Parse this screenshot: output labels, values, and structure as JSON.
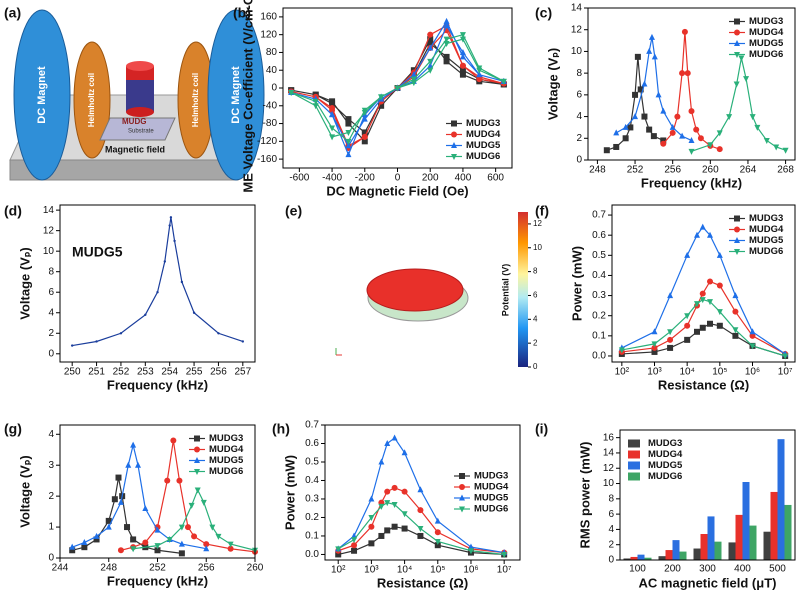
{
  "figure": {
    "panel_a": {
      "panel": "(a)",
      "magnet_label": "DC Magnet",
      "coil_label": "Helmholtz coil",
      "sample_label": "MUDG",
      "substrate_label": "Substrate",
      "field_label": "Magnetic field"
    },
    "panel_e": {
      "panel": "(e)",
      "colorbar_label": "Potential (V)",
      "range": [
        0,
        13
      ],
      "ticks": [
        0,
        2,
        4,
        6,
        8,
        10,
        12
      ]
    }
  },
  "chart_data": [
    {
      "type": "line",
      "panel": "(b)",
      "xlabel": "DC Magnetic Field (Oe)",
      "ylabel": "ME Voltage Co-efficient (V/cm-Oe)",
      "xlim": [
        -700,
        700
      ],
      "xticks": [
        -600,
        -400,
        -200,
        0,
        200,
        400,
        600
      ],
      "ylim": [
        -180,
        180
      ],
      "yticks": [
        -160,
        -120,
        -80,
        -40,
        0,
        40,
        80,
        120,
        160
      ],
      "legend": "lower right",
      "series": [
        {
          "name": "MUDG3",
          "color": "#333333",
          "marker": "square",
          "x": [
            -650,
            -500,
            -400,
            -300,
            -200,
            -100,
            0,
            100,
            200,
            300,
            400,
            500,
            650,
            650,
            500,
            400,
            300,
            200,
            100,
            0,
            -100,
            -200,
            -300,
            -400,
            -500,
            -650
          ],
          "values": [
            -5,
            -15,
            -30,
            -80,
            -120,
            -40,
            0,
            40,
            110,
            60,
            30,
            15,
            8,
            8,
            20,
            40,
            70,
            100,
            30,
            0,
            -30,
            -100,
            -70,
            -35,
            -15,
            -5
          ]
        },
        {
          "name": "MUDG4",
          "color": "#e8322a",
          "marker": "circle",
          "x": [
            -650,
            -500,
            -400,
            -300,
            -200,
            -100,
            0,
            100,
            200,
            300,
            400,
            500,
            650,
            650,
            500,
            400,
            300,
            200,
            100,
            0,
            -100,
            -200,
            -300,
            -400,
            -500,
            -650
          ],
          "values": [
            -8,
            -20,
            -45,
            -130,
            -110,
            -30,
            0,
            35,
            120,
            140,
            50,
            20,
            10,
            10,
            25,
            50,
            130,
            90,
            25,
            0,
            -30,
            -110,
            -135,
            -50,
            -20,
            -8
          ]
        },
        {
          "name": "MUDG5",
          "color": "#1e6fe8",
          "marker": "triangle",
          "x": [
            -650,
            -500,
            -400,
            -300,
            -200,
            -100,
            0,
            100,
            200,
            300,
            400,
            500,
            650,
            650,
            500,
            400,
            300,
            200,
            100,
            0,
            -100,
            -200,
            -300,
            -400,
            -500,
            -650
          ],
          "values": [
            -10,
            -25,
            -60,
            -150,
            -60,
            -20,
            0,
            30,
            90,
            150,
            70,
            30,
            15,
            15,
            30,
            80,
            140,
            50,
            15,
            0,
            -25,
            -70,
            -130,
            -60,
            -25,
            -10
          ]
        },
        {
          "name": "MUDG6",
          "color": "#2ab07a",
          "marker": "triangle-down",
          "x": [
            -650,
            -500,
            -400,
            -300,
            -200,
            -100,
            0,
            100,
            200,
            300,
            400,
            500,
            650,
            650,
            500,
            400,
            300,
            200,
            100,
            0,
            -100,
            -200,
            -300,
            -400,
            -500,
            -650
          ],
          "values": [
            -10,
            -30,
            -90,
            -120,
            -50,
            -20,
            0,
            20,
            60,
            110,
            120,
            45,
            15,
            15,
            40,
            110,
            100,
            40,
            12,
            0,
            -20,
            -55,
            -100,
            -110,
            -40,
            -10
          ]
        }
      ]
    },
    {
      "type": "line",
      "panel": "(c)",
      "xlabel": "Frequency (kHz)",
      "ylabel": "Voltage (Vₚ)",
      "xlim": [
        247,
        269
      ],
      "xticks": [
        248,
        252,
        256,
        260,
        264,
        268
      ],
      "ylim": [
        0,
        14
      ],
      "yticks": [
        0,
        2,
        4,
        6,
        8,
        10,
        12,
        14
      ],
      "legend": "upper right",
      "series": [
        {
          "name": "MUDG3",
          "color": "#333333",
          "marker": "square",
          "x": [
            249,
            250,
            251,
            251.5,
            252,
            252.3,
            252.6,
            253,
            253.5,
            254,
            255
          ],
          "values": [
            0.9,
            1.2,
            2,
            3,
            6,
            9.5,
            6.5,
            4,
            2.8,
            2.2,
            1.8
          ]
        },
        {
          "name": "MUDG4",
          "color": "#e8322a",
          "marker": "circle",
          "x": [
            255,
            256,
            256.5,
            257,
            257.3,
            257.6,
            258,
            258.5,
            259,
            260,
            261
          ],
          "values": [
            1.5,
            2.5,
            4,
            8,
            11.8,
            8,
            4.5,
            2.8,
            2,
            1.3,
            1
          ]
        },
        {
          "name": "MUDG5",
          "color": "#1e6fe8",
          "marker": "triangle",
          "x": [
            250,
            251,
            252,
            253,
            253.5,
            253.8,
            254.1,
            254.5,
            255,
            256,
            257,
            258
          ],
          "values": [
            2.5,
            3,
            4,
            7,
            10,
            11.3,
            9.5,
            6,
            4.5,
            3,
            2.2,
            1.8
          ]
        },
        {
          "name": "MUDG6",
          "color": "#2ab07a",
          "marker": "triangle-down",
          "x": [
            258,
            260,
            261,
            262,
            262.8,
            263.3,
            263.8,
            264.5,
            265,
            266,
            267,
            268
          ],
          "values": [
            0.8,
            1.4,
            2.5,
            4,
            7,
            9.4,
            7.5,
            4,
            3,
            1.8,
            1.2,
            0.9
          ]
        }
      ]
    },
    {
      "type": "line",
      "panel": "(d)",
      "xlabel": "Frequency (kHz)",
      "ylabel": "Voltage (Vₚ)",
      "annotation": "MUDG5",
      "xlim": [
        249.5,
        257.5
      ],
      "xticks": [
        250,
        251,
        252,
        253,
        254,
        255,
        256,
        257
      ],
      "ylim": [
        -0.8,
        14.5
      ],
      "yticks": [
        0,
        2,
        4,
        6,
        8,
        10,
        12,
        14
      ],
      "series": [
        {
          "color": "#1a3d9c",
          "marker": "dot",
          "x": [
            250,
            251,
            252,
            253,
            253.5,
            253.8,
            254,
            254.05,
            254.2,
            254.5,
            255,
            256,
            257
          ],
          "values": [
            0.8,
            1.2,
            2,
            3.8,
            6,
            9,
            12.5,
            13.3,
            11,
            7,
            4,
            2,
            1.2
          ]
        }
      ]
    },
    {
      "type": "line",
      "panel": "(f)",
      "xlabel": "Resistance (Ω)",
      "ylabel": "Power (mW)",
      "xscale": "log",
      "xlim": [
        50,
        20000000
      ],
      "xticks": [
        {
          "value": 100,
          "label": "10²"
        },
        {
          "value": 1000,
          "label": "10³"
        },
        {
          "value": 10000,
          "label": "10⁴"
        },
        {
          "value": 100000,
          "label": "10⁵"
        },
        {
          "value": 1000000,
          "label": "10⁶"
        },
        {
          "value": 10000000,
          "label": "10⁷"
        }
      ],
      "ylim": [
        -0.03,
        0.75
      ],
      "yticks": [
        {
          "value": 0,
          "label": "0.0"
        },
        0.1,
        0.2,
        0.3,
        0.4,
        0.5,
        0.6,
        0.7
      ],
      "legend": "upper right",
      "series": [
        {
          "name": "MUDG3",
          "color": "#333333",
          "marker": "square",
          "x": [
            100,
            1000,
            3000,
            10000,
            20000,
            30000,
            50000,
            100000,
            300000,
            1000000,
            10000000
          ],
          "values": [
            0.01,
            0.02,
            0.04,
            0.08,
            0.12,
            0.14,
            0.16,
            0.15,
            0.1,
            0.05,
            0.0
          ]
        },
        {
          "name": "MUDG4",
          "color": "#e8322a",
          "marker": "circle",
          "x": [
            100,
            1000,
            3000,
            10000,
            20000,
            30000,
            50000,
            100000,
            300000,
            1000000,
            10000000
          ],
          "values": [
            0.02,
            0.04,
            0.08,
            0.15,
            0.25,
            0.31,
            0.37,
            0.35,
            0.22,
            0.1,
            0.01
          ]
        },
        {
          "name": "MUDG5",
          "color": "#1e6fe8",
          "marker": "triangle",
          "x": [
            100,
            1000,
            3000,
            10000,
            20000,
            30000,
            50000,
            100000,
            300000,
            1000000,
            10000000
          ],
          "values": [
            0.04,
            0.12,
            0.3,
            0.5,
            0.6,
            0.64,
            0.6,
            0.5,
            0.3,
            0.12,
            0.01
          ]
        },
        {
          "name": "MUDG6",
          "color": "#2ab07a",
          "marker": "triangle-down",
          "x": [
            100,
            1000,
            3000,
            10000,
            20000,
            30000,
            50000,
            100000,
            300000,
            1000000,
            10000000
          ],
          "values": [
            0.03,
            0.06,
            0.12,
            0.2,
            0.26,
            0.28,
            0.27,
            0.22,
            0.13,
            0.05,
            0.0
          ]
        }
      ]
    },
    {
      "type": "line",
      "panel": "(g)",
      "xlabel": "Frequency (kHz)",
      "ylabel": "Voltage (Vₚ)",
      "xlim": [
        244,
        260
      ],
      "xticks": [
        244,
        248,
        252,
        256,
        260
      ],
      "ylim": [
        0,
        4.3
      ],
      "yticks": [
        0,
        1,
        2,
        3,
        4
      ],
      "legend": "upper right",
      "series": [
        {
          "name": "MUDG3",
          "color": "#333333",
          "marker": "square",
          "x": [
            245,
            246,
            247,
            248,
            248.5,
            248.8,
            249.1,
            249.5,
            250,
            251,
            252,
            254
          ],
          "values": [
            0.25,
            0.35,
            0.6,
            1.2,
            1.9,
            2.6,
            2,
            1,
            0.6,
            0.35,
            0.25,
            0.15
          ]
        },
        {
          "name": "MUDG4",
          "color": "#e8322a",
          "marker": "circle",
          "x": [
            249,
            250,
            251,
            252,
            252.8,
            253.3,
            253.8,
            254.5,
            255,
            256,
            258,
            260
          ],
          "values": [
            0.25,
            0.35,
            0.5,
            1,
            2.5,
            3.8,
            2.5,
            1,
            0.7,
            0.45,
            0.3,
            0.2
          ]
        },
        {
          "name": "MUDG5",
          "color": "#1e6fe8",
          "marker": "triangle",
          "x": [
            245,
            246,
            247,
            248,
            249,
            249.6,
            250,
            250.4,
            251,
            252,
            253,
            254,
            256
          ],
          "values": [
            0.35,
            0.5,
            0.7,
            1,
            1.8,
            3,
            3.65,
            3,
            1.6,
            0.9,
            0.6,
            0.45,
            0.3
          ]
        },
        {
          "name": "MUDG6",
          "color": "#2ab07a",
          "marker": "triangle-down",
          "x": [
            250,
            252,
            253,
            254,
            254.8,
            255.3,
            255.8,
            256.5,
            257,
            258,
            260
          ],
          "values": [
            0.3,
            0.4,
            0.6,
            1,
            1.7,
            2.2,
            1.8,
            1,
            0.7,
            0.45,
            0.25
          ]
        }
      ]
    },
    {
      "type": "line",
      "panel": "(h)",
      "xlabel": "Resistance (Ω)",
      "ylabel": "Power (mW)",
      "xscale": "log",
      "xlim": [
        40,
        30000000
      ],
      "xticks": [
        {
          "value": 100,
          "label": "10²"
        },
        {
          "value": 1000,
          "label": "10³"
        },
        {
          "value": 10000,
          "label": "10⁴"
        },
        {
          "value": 100000,
          "label": "10⁵"
        },
        {
          "value": 1000000,
          "label": "10⁶"
        },
        {
          "value": 10000000,
          "label": "10⁷"
        }
      ],
      "ylim": [
        -0.03,
        0.7
      ],
      "yticks": [
        {
          "value": 0,
          "label": "0.0"
        },
        0.1,
        0.2,
        0.3,
        0.4,
        0.5,
        0.6,
        0.7
      ],
      "legend": "center right",
      "series": [
        {
          "name": "MUDG3",
          "color": "#333333",
          "marker": "square",
          "x": [
            100,
            300,
            1000,
            2000,
            3000,
            5000,
            10000,
            30000,
            100000,
            1000000,
            10000000
          ],
          "values": [
            0.0,
            0.02,
            0.06,
            0.1,
            0.13,
            0.15,
            0.14,
            0.1,
            0.05,
            0.01,
            0.0
          ]
        },
        {
          "name": "MUDG4",
          "color": "#e8322a",
          "marker": "circle",
          "x": [
            100,
            300,
            1000,
            2000,
            3000,
            5000,
            10000,
            30000,
            100000,
            1000000,
            10000000
          ],
          "values": [
            0.02,
            0.05,
            0.15,
            0.28,
            0.34,
            0.36,
            0.34,
            0.24,
            0.12,
            0.03,
            0.01
          ]
        },
        {
          "name": "MUDG5",
          "color": "#1e6fe8",
          "marker": "triangle",
          "x": [
            100,
            300,
            1000,
            2000,
            3000,
            5000,
            10000,
            30000,
            100000,
            1000000,
            10000000
          ],
          "values": [
            0.03,
            0.1,
            0.3,
            0.5,
            0.6,
            0.63,
            0.55,
            0.35,
            0.18,
            0.04,
            0.01
          ]
        },
        {
          "name": "MUDG6",
          "color": "#2ab07a",
          "marker": "triangle-down",
          "x": [
            100,
            300,
            1000,
            2000,
            3000,
            5000,
            10000,
            30000,
            100000,
            1000000,
            10000000
          ],
          "values": [
            0.03,
            0.08,
            0.2,
            0.26,
            0.28,
            0.27,
            0.22,
            0.14,
            0.07,
            0.02,
            0.0
          ]
        }
      ]
    },
    {
      "type": "bar",
      "panel": "(i)",
      "xlabel": "AC  magnetic field (μT)",
      "ylabel": "RMS power (mW)",
      "categories": [
        "100",
        "200",
        "300",
        "400",
        "500"
      ],
      "ylim": [
        0,
        17
      ],
      "yticks": [
        0,
        2,
        4,
        6,
        8,
        10,
        12,
        14,
        16
      ],
      "legend": "upper left",
      "series": [
        {
          "name": "MUDG3",
          "color": "#404040",
          "values": [
            0.2,
            0.5,
            1.5,
            2.3,
            3.7
          ]
        },
        {
          "name": "MUDG4",
          "color": "#e8312b",
          "values": [
            0.4,
            1.3,
            3.4,
            5.9,
            8.9
          ]
        },
        {
          "name": "MUDG5",
          "color": "#2a6fe0",
          "values": [
            0.7,
            2.6,
            5.7,
            10.2,
            15.8
          ]
        },
        {
          "name": "MUDG6",
          "color": "#3ea565",
          "values": [
            0.3,
            1.1,
            2.4,
            4.5,
            7.2
          ]
        }
      ]
    }
  ]
}
